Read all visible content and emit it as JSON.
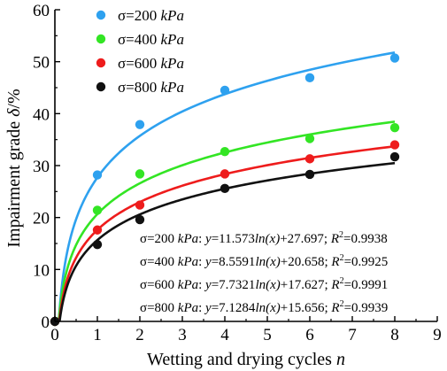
{
  "chart_data": {
    "type": "scatter",
    "title": "",
    "xlabel": "Wetting and drying cycles",
    "xlabel_var": "n",
    "ylabel": "Impairment grade",
    "ylabel_var": "δ",
    "ylabel_unit": "/%",
    "xlim": [
      0,
      9
    ],
    "ylim": [
      0,
      60
    ],
    "xticks": [
      "0",
      "1",
      "2",
      "3",
      "4",
      "5",
      "6",
      "7",
      "8",
      "9"
    ],
    "yticks": [
      "0",
      "10",
      "20",
      "30",
      "40",
      "50",
      "60"
    ],
    "grid": false,
    "legend_position": "top-left",
    "x": [
      0,
      1,
      2,
      4,
      6,
      8
    ],
    "series": [
      {
        "name_prefix": "σ=200 ",
        "name_unit": "kPa",
        "color": "#2ea1ef",
        "values": [
          0,
          28.2,
          37.9,
          44.5,
          46.9,
          50.7
        ],
        "fit": {
          "a": 11.573,
          "b": 27.697
        },
        "equation": {
          "prefix": "σ=200 ",
          "unit": "kPa",
          "y": "y",
          "coef": "=11.573",
          "ln": "ln(x)",
          "const": "+27.697; ",
          "r": "R",
          "r_sup": "2",
          "r_val": "=0.9938"
        }
      },
      {
        "name_prefix": "σ=400 ",
        "name_unit": "kPa",
        "color": "#33e524",
        "values": [
          0,
          21.4,
          28.4,
          32.7,
          35.2,
          37.3
        ],
        "fit": {
          "a": 8.5591,
          "b": 20.658
        },
        "equation": {
          "prefix": "σ=400 ",
          "unit": "kPa",
          "y": "y",
          "coef": "=8.5591",
          "ln": "ln(x)",
          "const": "+20.658; ",
          "r": "R",
          "r_sup": "2",
          "r_val": "=0.9925"
        }
      },
      {
        "name_prefix": "σ=600 ",
        "name_unit": "kPa",
        "color": "#ee1c1c",
        "values": [
          0,
          17.6,
          22.4,
          28.4,
          31.3,
          34.0
        ],
        "fit": {
          "a": 7.7321,
          "b": 17.627
        },
        "equation": {
          "prefix": "σ=600 ",
          "unit": "kPa",
          "y": "y",
          "coef": "=7.7321",
          "ln": "ln(x)",
          "const": "+17.627; ",
          "r": "R",
          "r_sup": "2",
          "r_val": "=0.9991"
        }
      },
      {
        "name_prefix": "σ=800 ",
        "name_unit": "kPa",
        "color": "#111111",
        "values": [
          0,
          14.8,
          19.6,
          25.6,
          28.3,
          31.7
        ],
        "fit": {
          "a": 7.1284,
          "b": 15.656
        },
        "equation": {
          "prefix": "σ=800 ",
          "unit": "kPa",
          "y": "y",
          "coef": "=7.1284",
          "ln": "ln(x)",
          "const": "+15.656; ",
          "r": "R",
          "r_sup": "2",
          "r_val": "=0.9939"
        }
      }
    ]
  }
}
